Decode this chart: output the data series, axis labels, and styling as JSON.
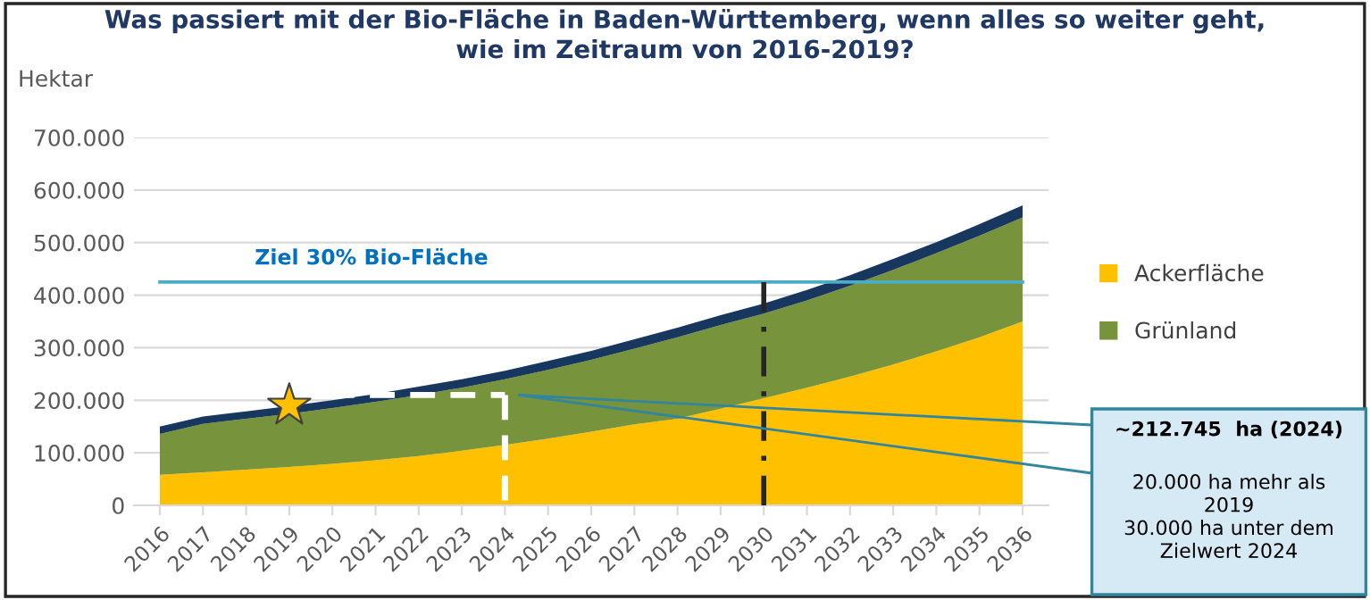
{
  "chart_data": {
    "type": "area",
    "stacked": true,
    "title": "Was passiert mit der Bio-Fläche in Baden-Württemberg, wenn alles so weiter geht,\nwie im Zeitraum von 2016-2019?",
    "ylabel": "Hektar",
    "categories": [
      "2016",
      "2017",
      "2018",
      "2019",
      "2020",
      "2021",
      "2022",
      "2023",
      "2024",
      "2025",
      "2026",
      "2027",
      "2028",
      "2029",
      "2030",
      "2031",
      "2032",
      "2033",
      "2034",
      "2035",
      "2036"
    ],
    "series": [
      {
        "name": "Ackerfläche",
        "color": "#ffc000",
        "values": [
          58000,
          63000,
          68000,
          73000,
          79000,
          86000,
          94000,
          104000,
          115000,
          127000,
          140000,
          154000,
          165000,
          184000,
          204000,
          224000,
          245000,
          268000,
          293000,
          320000,
          350000
        ]
      },
      {
        "name": "Grünland",
        "color": "#77933c",
        "values": [
          78000,
          92000,
          97000,
          101000,
          106000,
          111000,
          116000,
          120000,
          125000,
          131000,
          137000,
          144000,
          155000,
          159000,
          161000,
          166000,
          173000,
          180000,
          187000,
          193000,
          198000
        ]
      },
      {
        "color": "#17375e",
        "values": [
          14000,
          14000,
          14000,
          15000,
          15000,
          15000,
          16000,
          16000,
          16000,
          17000,
          17000,
          18000,
          18000,
          19000,
          19000,
          20000,
          20000,
          21000,
          21000,
          22000,
          23000
        ]
      },
      {
        "type": "line",
        "color": "#ffffff",
        "line_style": "dashed",
        "values": [
          null,
          null,
          null,
          210000,
          210000,
          210000,
          210000,
          210000,
          210000,
          null,
          null,
          null,
          null,
          null,
          null,
          null,
          null,
          null,
          null,
          null,
          null
        ]
      },
      {
        "type": "scatter",
        "color": "#ffc000",
        "marker": "star",
        "values": [
          null,
          null,
          null,
          190000,
          null,
          null,
          null,
          null,
          null,
          null,
          null,
          null,
          null,
          null,
          null,
          null,
          null,
          null,
          null,
          null,
          null
        ]
      }
    ],
    "ylim": [
      0,
      700000
    ],
    "yticks": [
      {
        "value": 0,
        "label": "0"
      },
      {
        "value": 100000,
        "label": "100.000"
      },
      {
        "value": 200000,
        "label": "200.000"
      },
      {
        "value": 300000,
        "label": "300.000"
      },
      {
        "value": 400000,
        "label": "400.000"
      },
      {
        "value": 500000,
        "label": "500.000"
      },
      {
        "value": 600000,
        "label": "600.000"
      },
      {
        "value": 700000,
        "label": "700.000"
      }
    ],
    "grid": "y",
    "legend": "right",
    "ref_lines": [
      {
        "axis": "y",
        "value": 425000,
        "label": "Ziel 30% Bio-Fläche",
        "color": "#4bacc6"
      },
      {
        "axis": "x",
        "value": "2030",
        "color": "#262626",
        "line_style": "dashdot"
      }
    ],
    "annotations": [
      "~212.745  ha (2024)",
      "20.000 ha mehr als\n2019\n30.000 ha unter dem\nZielwert 2024"
    ]
  }
}
